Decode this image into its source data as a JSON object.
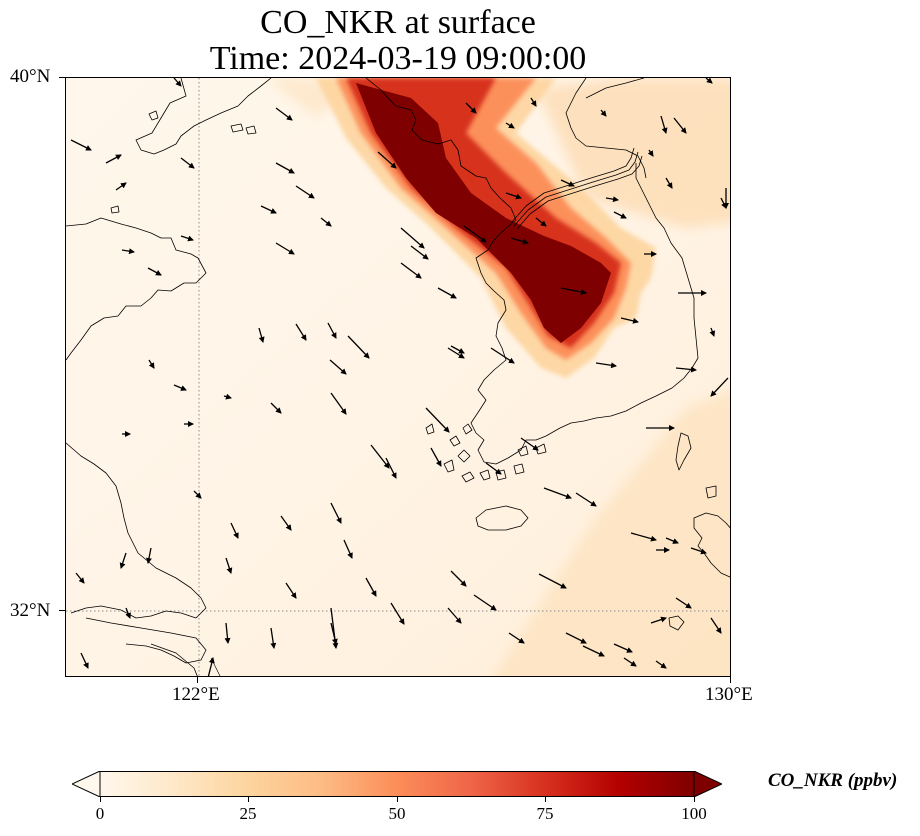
{
  "title": {
    "line1": "CO_NKR at surface",
    "line2": "Time: 2024-03-19 09:00:00"
  },
  "map": {
    "variable": "CO_NKR",
    "level": "surface",
    "time": "2024-03-19 09:00:00",
    "projection": "lat-lon",
    "extent": {
      "lon_min": 120.0,
      "lon_max": 130.0,
      "lat_min": 30.9,
      "lat_max": 40.0
    },
    "gridlines": {
      "style": "dotted",
      "color": "#808080",
      "lons": [
        122
      ],
      "lats": [
        32
      ]
    },
    "x_ticks": [
      {
        "lon": 122,
        "label": "122°E"
      },
      {
        "lon": 130,
        "label": "130°E"
      }
    ],
    "y_ticks": [
      {
        "lat": 40,
        "label": "40°N"
      },
      {
        "lat": 32,
        "label": "32°N"
      }
    ],
    "plume": {
      "description_word": "concentrated CO plume extending from northwest to southeast",
      "core_path": [
        {
          "lon": 124.4,
          "lat": 39.9
        },
        {
          "lon": 125.1,
          "lat": 39.4
        },
        {
          "lon": 125.9,
          "lat": 38.7
        },
        {
          "lon": 126.6,
          "lat": 38.1
        },
        {
          "lon": 127.2,
          "lat": 37.6
        },
        {
          "lon": 126.7,
          "lat": 36.9
        }
      ],
      "max_value": 100
    },
    "wind_vectors": "wind arrows pointing predominantly toward the southeast"
  },
  "colorbar": {
    "label": "CO_NKR (ppbv)",
    "min": 0,
    "max": 100,
    "extend": "both",
    "colormap": "OrRd",
    "colors": [
      "#fff7ec",
      "#fee8c8",
      "#fdd49e",
      "#fdbb84",
      "#fc8d59",
      "#ef6548",
      "#d7301f",
      "#b30000",
      "#7f0000"
    ],
    "ticks": [
      {
        "value": 0,
        "label": "0"
      },
      {
        "value": 25,
        "label": "25"
      },
      {
        "value": 50,
        "label": "50"
      },
      {
        "value": 75,
        "label": "75"
      },
      {
        "value": 100,
        "label": "100"
      }
    ]
  }
}
